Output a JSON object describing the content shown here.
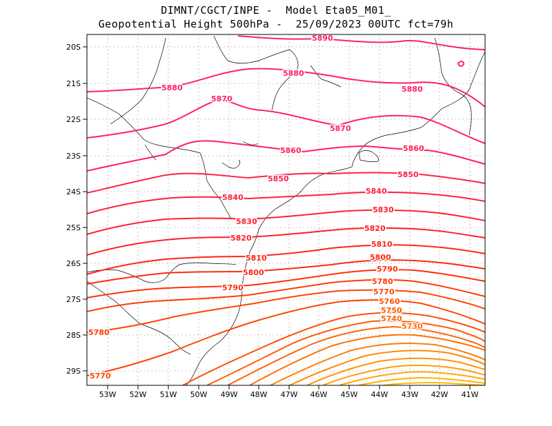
{
  "header": {
    "line1": "DIMNT/CGCT/INPE -  Model Eta05_M01_",
    "line2": "Geopotential Height 500hPa -  25/09/2023 00UTC fct=79h"
  },
  "axes": {
    "lat_labels": [
      "20S",
      "21S",
      "22S",
      "23S",
      "24S",
      "25S",
      "26S",
      "27S",
      "28S",
      "29S"
    ],
    "lon_labels": [
      "53W",
      "52W",
      "51W",
      "50W",
      "49W",
      "48W",
      "47W",
      "46W",
      "45W",
      "44W",
      "43W",
      "42W",
      "41W"
    ]
  },
  "contours": {
    "labels": [
      {
        "text": "5890",
        "color": "#ff1f6e"
      },
      {
        "text": "5880",
        "color": "#ff1f6e"
      },
      {
        "text": "5880",
        "color": "#ff1f6e"
      },
      {
        "text": "5880",
        "color": "#ff1f6e"
      },
      {
        "text": "5870",
        "color": "#ff1f6e"
      },
      {
        "text": "5870",
        "color": "#ff1f6e"
      },
      {
        "text": "5860",
        "color": "#ff1f5a"
      },
      {
        "text": "5860",
        "color": "#ff1f5a"
      },
      {
        "text": "5850",
        "color": "#ff1f4a"
      },
      {
        "text": "5850",
        "color": "#ff1f4a"
      },
      {
        "text": "5840",
        "color": "#ff1f3c"
      },
      {
        "text": "5840",
        "color": "#ff1f3c"
      },
      {
        "text": "5830",
        "color": "#ff1f30"
      },
      {
        "text": "5830",
        "color": "#ff1f30"
      },
      {
        "text": "5820",
        "color": "#ff1f24"
      },
      {
        "text": "5820",
        "color": "#ff1f24"
      },
      {
        "text": "5810",
        "color": "#ff2418"
      },
      {
        "text": "5810",
        "color": "#ff2418"
      },
      {
        "text": "5800",
        "color": "#ff2810"
      },
      {
        "text": "5800",
        "color": "#ff2810"
      },
      {
        "text": "5790",
        "color": "#ff300a"
      },
      {
        "text": "5790",
        "color": "#ff300a"
      },
      {
        "text": "5780",
        "color": "#ff3a06"
      },
      {
        "text": "5780",
        "color": "#ff3a06"
      },
      {
        "text": "5770",
        "color": "#ff4404"
      },
      {
        "text": "5770",
        "color": "#ff4404"
      },
      {
        "text": "5760",
        "color": "#ff5004"
      },
      {
        "text": "5750",
        "color": "#ff5a04"
      },
      {
        "text": "5740",
        "color": "#ff6404"
      },
      {
        "text": "5730",
        "color": "#ff7004"
      }
    ]
  }
}
